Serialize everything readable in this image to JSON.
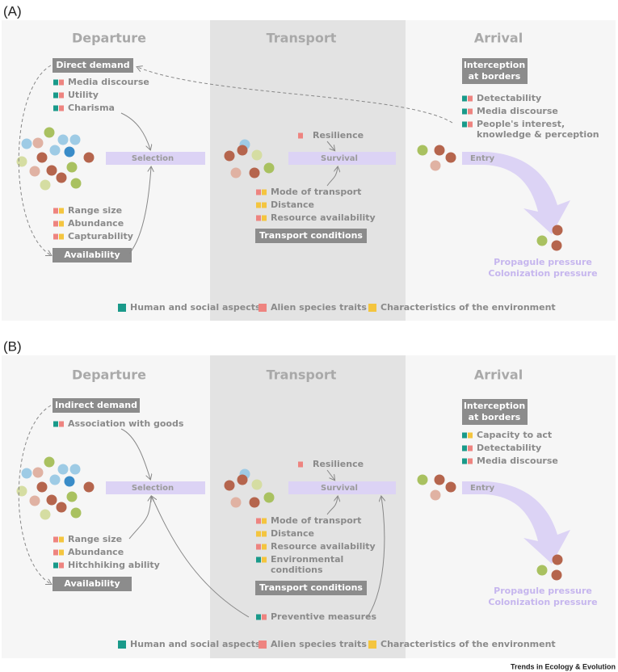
{
  "panels": [
    {
      "label": "(A)",
      "columns": [
        "Departure",
        "Transport",
        "Arrival"
      ],
      "departure": {
        "demand_box": "Direct demand",
        "demand_factors": [
          "Media discourse",
          "Utility",
          "Charisma"
        ],
        "selection": "Selection",
        "availability_factors": [
          "Range size",
          "Abundance",
          "Capturability"
        ],
        "availability_box": "Availability"
      },
      "transport": {
        "resilience": "Resilience",
        "survival": "Survival",
        "factors": [
          [
            "Mode of transport"
          ],
          [
            "Distance"
          ],
          [
            "Resource availability"
          ]
        ],
        "conditions_box": "Transport conditions"
      },
      "arrival": {
        "interception_box": [
          "Interception",
          "at borders"
        ],
        "factors": [
          [
            "Detectability"
          ],
          [
            "Media discourse"
          ],
          [
            "People's interest,",
            "knowledge & perception"
          ]
        ],
        "entry": "Entry",
        "pressure": [
          "Propagule pressure",
          "Colonization pressure"
        ]
      },
      "legend": [
        "Human and social aspects",
        "Alien species traits",
        "Characteristics of the environment"
      ]
    },
    {
      "label": "(B)",
      "columns": [
        "Departure",
        "Transport",
        "Arrival"
      ],
      "departure": {
        "demand_box": "Indirect demand",
        "demand_factors": [
          "Association with goods"
        ],
        "selection": "Selection",
        "availability_factors": [
          "Range size",
          "Abundance",
          "Hitchhiking ability"
        ],
        "availability_box": "Availability"
      },
      "transport": {
        "resilience": "Resilience",
        "survival": "Survival",
        "factors": [
          [
            "Mode of transport"
          ],
          [
            "Distance"
          ],
          [
            "Resource availability"
          ],
          [
            "Environmental",
            "conditions"
          ]
        ],
        "conditions_box": "Transport conditions",
        "preventive": "Preventive measures"
      },
      "arrival": {
        "interception_box": [
          "Interception",
          "at borders"
        ],
        "factors": [
          [
            "Capacity to act"
          ],
          [
            "Detectability"
          ],
          [
            "Media discourse"
          ]
        ],
        "entry": "Entry",
        "pressure": [
          "Propagule pressure",
          "Colonization pressure"
        ]
      },
      "legend": [
        "Human and social aspects",
        "Alien species traits",
        "Characteristics of the environment"
      ]
    }
  ],
  "footer": "Trends in Ecology & Evolution"
}
